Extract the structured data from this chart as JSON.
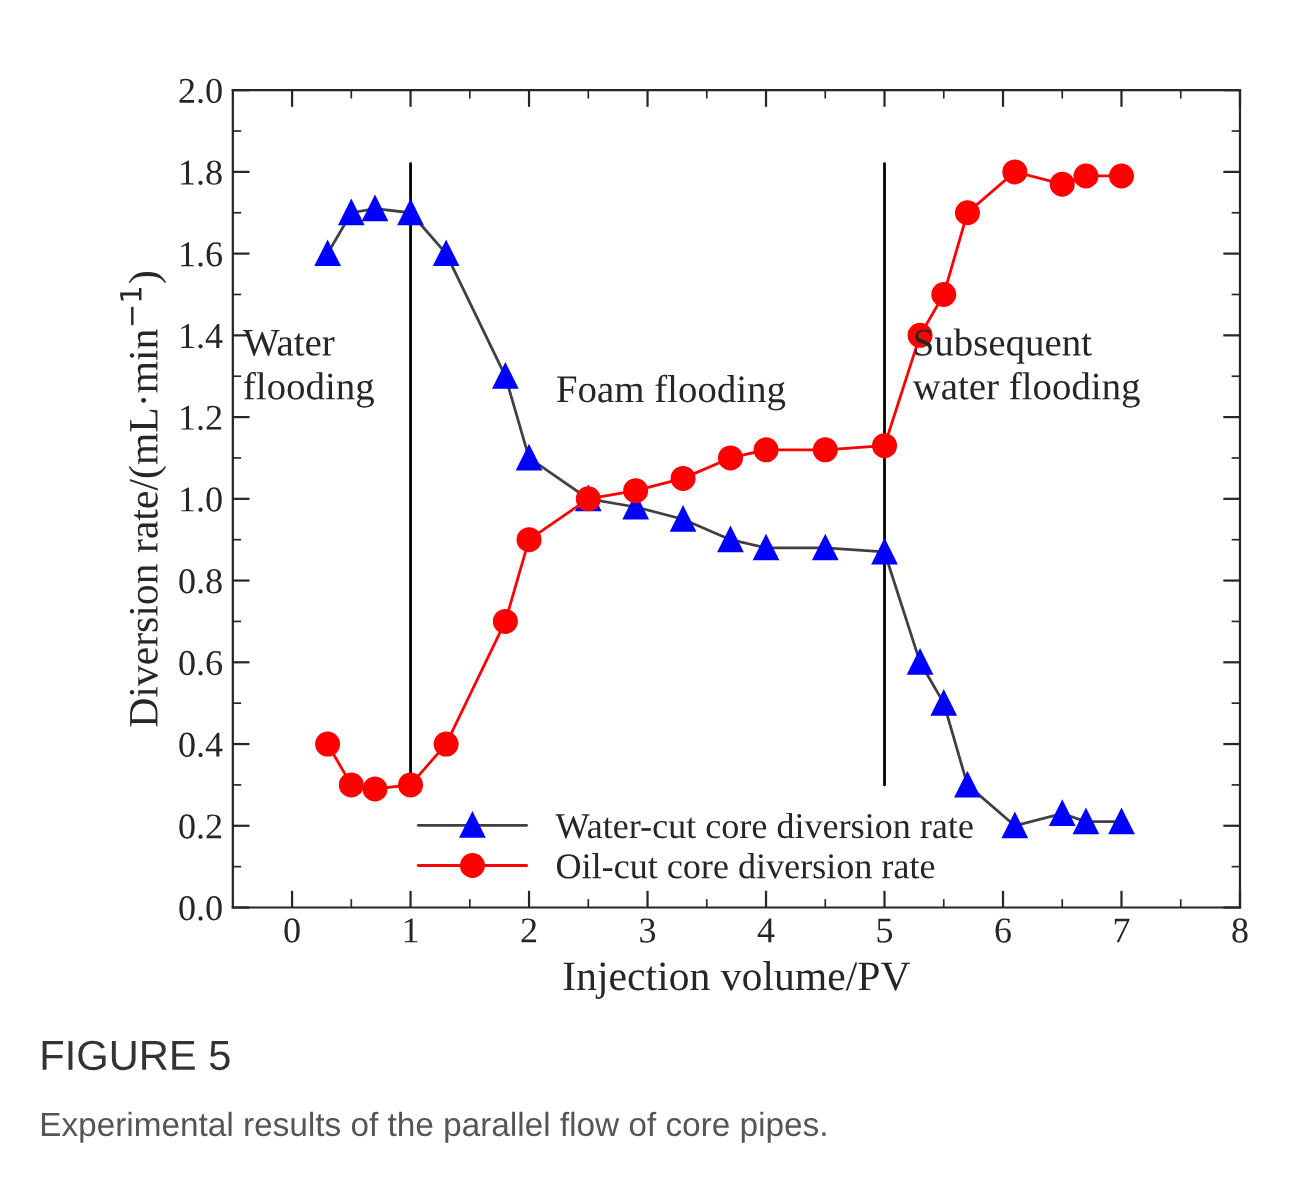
{
  "chart_data": {
    "type": "line",
    "title": "FIGURE 5",
    "xlabel": "Injection volume/PV",
    "ylabel": "Diversion rate/(mL·min$^{−1}$)",
    "annotations": [
      "Water\nflooding",
      "Foam flooding",
      "Subsequent\nwater flooding",
      "Experimental results of the parallel flow of core pipes."
    ],
    "series": [
      {
        "name": "Water-cut core diversion rate",
        "color": "#0000ff",
        "marker": "triangle",
        "x": [
          0.3,
          0.5,
          0.7,
          1.0,
          1.3,
          1.8,
          2.0,
          2.5,
          2.9,
          3.3,
          3.7,
          4.0,
          4.5,
          5.0,
          5.3,
          5.5,
          5.7,
          6.1,
          6.5,
          6.7,
          7.0
        ],
        "values": [
          1.6,
          1.7,
          1.71,
          1.7,
          1.6,
          1.3,
          1.1,
          1.0,
          0.98,
          0.95,
          0.9,
          0.88,
          0.88,
          0.87,
          0.6,
          0.5,
          0.3,
          0.2,
          0.23,
          0.21,
          0.21
        ]
      },
      {
        "name": "Oil-cut core diversion rate",
        "color": "#ff0000",
        "marker": "circle",
        "x": [
          0.3,
          0.5,
          0.7,
          1.0,
          1.3,
          1.8,
          2.0,
          2.5,
          2.9,
          3.3,
          3.7,
          4.0,
          4.5,
          5.0,
          5.3,
          5.5,
          5.7,
          6.1,
          6.5,
          6.7,
          7.0
        ],
        "values": [
          0.4,
          0.3,
          0.29,
          0.3,
          0.4,
          0.7,
          0.9,
          1.0,
          1.02,
          1.05,
          1.1,
          1.12,
          1.12,
          1.13,
          1.4,
          1.5,
          1.7,
          1.8,
          1.77,
          1.79,
          1.79
        ]
      }
    ],
    "ref_lines": [
      {
        "axis": "x",
        "value": 1,
        "color": "#000000"
      },
      {
        "axis": "x",
        "value": 5,
        "color": "#000000"
      }
    ],
    "xlim": [
      -0.5,
      8
    ],
    "xticks": [
      0,
      1,
      2,
      3,
      4,
      5,
      6,
      7,
      8
    ],
    "ylim": [
      0,
      2.0
    ],
    "yticks": [
      {
        "value": 0,
        "label": "0.0"
      },
      {
        "value": 0.2,
        "label": "0.2"
      },
      {
        "value": 0.4,
        "label": "0.4"
      },
      {
        "value": 0.6,
        "label": "0.6"
      },
      {
        "value": 0.8,
        "label": "0.8"
      },
      {
        "value": 1.0,
        "label": "1.0"
      },
      {
        "value": 1.2,
        "label": "1.2"
      },
      {
        "value": 1.4,
        "label": "1.4"
      },
      {
        "value": 1.6,
        "label": "1.6"
      },
      {
        "value": 1.8,
        "label": "1.8"
      },
      {
        "value": 2.0,
        "label": "2.0"
      }
    ],
    "grid": false,
    "legend": "bottom",
    "line_style": "solid"
  }
}
